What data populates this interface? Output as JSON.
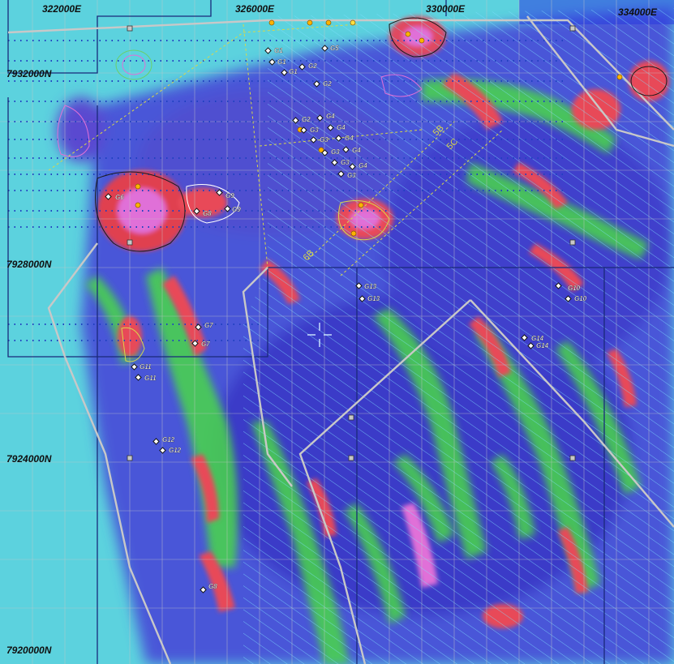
{
  "map": {
    "easting_labels": [
      "322000E",
      "326000E",
      "330000E",
      "334000E"
    ],
    "northing_labels": [
      "7932000N",
      "7928000N",
      "7924000N",
      "7920000N"
    ],
    "sample_groups": [
      {
        "label": "G1"
      },
      {
        "label": "G2"
      },
      {
        "label": "G3"
      },
      {
        "label": "G4"
      },
      {
        "label": "G5"
      },
      {
        "label": "G6"
      },
      {
        "label": "G7"
      },
      {
        "label": "G8"
      },
      {
        "label": "G9"
      },
      {
        "label": "G10"
      },
      {
        "label": "G11"
      },
      {
        "label": "G12"
      },
      {
        "label": "G13"
      },
      {
        "label": "G14"
      }
    ],
    "line_labels": [
      "5B",
      "5C",
      "6B"
    ],
    "colors": {
      "background": "#5fd6e0",
      "low_magnetic": "#3d3fd0",
      "mid_magnetic": "#4fe05a",
      "high_magnetic": "#e8404a",
      "peak_magnetic": "#e070d8",
      "hatch": "#6ad8ff",
      "grid": "#b8b8b8",
      "tenement_boundary": "#1a2a7a",
      "lease_boundary": "#c8c8c8"
    },
    "icons": [
      "sample-marker-icon",
      "drillhole-icon",
      "crosshair-icon",
      "grid-node-icon"
    ]
  }
}
